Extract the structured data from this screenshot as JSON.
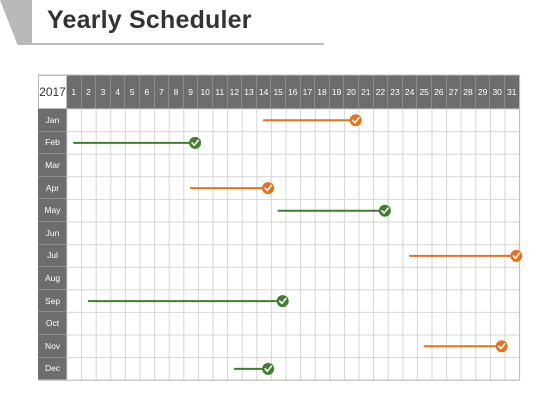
{
  "title": "Yearly Scheduler",
  "year": "2017",
  "days": [
    "1",
    "2",
    "3",
    "4",
    "5",
    "6",
    "7",
    "8",
    "9",
    "10",
    "11",
    "12",
    "13",
    "14",
    "15",
    "16",
    "17",
    "18",
    "19",
    "20",
    "21",
    "22",
    "23",
    "24",
    "25",
    "26",
    "27",
    "28",
    "29",
    "30",
    "31"
  ],
  "months": [
    "Jan",
    "Feb",
    "Mar",
    "Apr",
    "May",
    "Jun",
    "Jul",
    "Aug",
    "Sep",
    "Oct",
    "Nov",
    "Dec"
  ],
  "colors": {
    "orange": "#e8711e",
    "green": "#3f7f2f",
    "header": "#6d6d6d",
    "grid": "#d5d5d5"
  },
  "tasks": [
    {
      "month": "Jan",
      "start_day": 14,
      "end_day": 20,
      "color": "orange"
    },
    {
      "month": "Feb",
      "start_day": 1,
      "end_day": 9,
      "color": "green"
    },
    {
      "month": "Apr",
      "start_day": 9,
      "end_day": 14,
      "color": "orange"
    },
    {
      "month": "May",
      "start_day": 15,
      "end_day": 22,
      "color": "green"
    },
    {
      "month": "Jul",
      "start_day": 24,
      "end_day": 31,
      "color": "orange"
    },
    {
      "month": "Sep",
      "start_day": 2,
      "end_day": 15,
      "color": "green"
    },
    {
      "month": "Nov",
      "start_day": 25,
      "end_day": 30,
      "color": "orange"
    },
    {
      "month": "Dec",
      "start_day": 12,
      "end_day": 14,
      "color": "green"
    }
  ],
  "marker_icon": "check-icon"
}
